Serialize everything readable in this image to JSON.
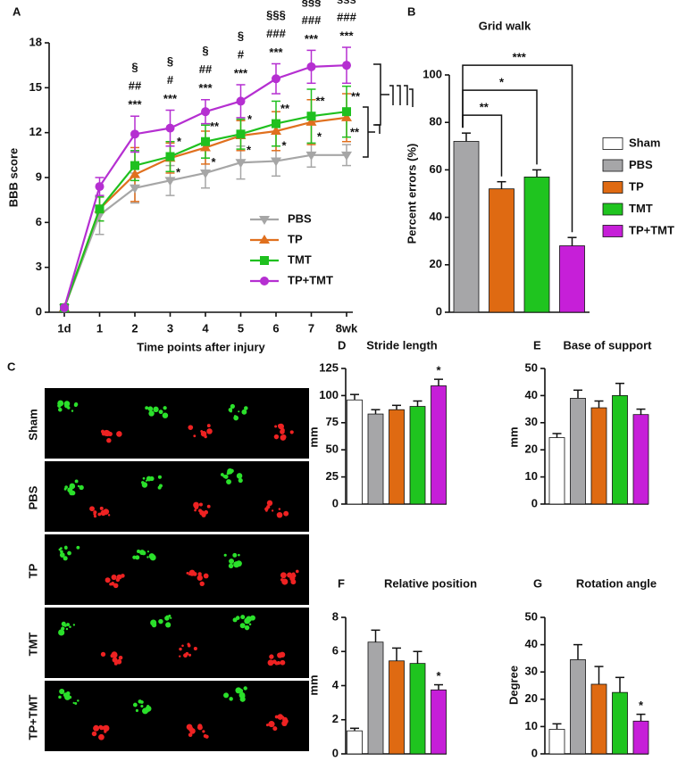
{
  "chart_data": [
    {
      "panel": "A",
      "type": "line",
      "ylabel": "BBB score",
      "xlabel": "Time points after injury",
      "categories": [
        "1d",
        "1",
        "2",
        "3",
        "4",
        "5",
        "6",
        "7",
        "8wk"
      ],
      "ylim": [
        0,
        18
      ],
      "yticks": [
        0,
        3,
        6,
        9,
        12,
        15,
        18
      ],
      "legend_position": "lower right",
      "series": [
        {
          "name": "PBS",
          "color": "#a6a6a6",
          "marker": "triangle-down",
          "values": [
            0.3,
            6.5,
            8.3,
            8.8,
            9.3,
            10.0,
            10.1,
            10.5,
            10.5
          ],
          "errors": [
            0.1,
            1.3,
            1.0,
            1.0,
            1.0,
            1.1,
            1.0,
            0.8,
            0.7
          ]
        },
        {
          "name": "TP",
          "color": "#e0701e",
          "marker": "triangle-up",
          "values": [
            0.3,
            6.9,
            9.2,
            10.3,
            11.0,
            11.8,
            12.1,
            12.7,
            13.0
          ],
          "errors": [
            0.1,
            0.8,
            1.8,
            1.0,
            1.1,
            1.0,
            1.3,
            1.5,
            1.6
          ],
          "annotations": [
            null,
            null,
            null,
            [
              "*"
            ],
            [
              "*"
            ],
            [
              "*"
            ],
            [
              "*"
            ],
            [
              "*"
            ],
            [
              "**"
            ]
          ]
        },
        {
          "name": "TMT",
          "color": "#1fc01f",
          "marker": "square",
          "values": [
            0.3,
            6.9,
            9.8,
            10.4,
            11.4,
            11.9,
            12.6,
            13.1,
            13.4
          ],
          "errors": [
            0.1,
            0.8,
            1.0,
            1.0,
            1.1,
            1.0,
            1.5,
            1.8,
            1.7
          ],
          "annotations": [
            null,
            null,
            null,
            [
              "*"
            ],
            [
              "**"
            ],
            [
              "*"
            ],
            [
              "**"
            ],
            [
              "**"
            ],
            [
              "**"
            ]
          ]
        },
        {
          "name": "TP+TMT",
          "color": "#b52fd1",
          "marker": "circle",
          "values": [
            0.3,
            8.4,
            11.9,
            12.3,
            13.4,
            14.1,
            15.6,
            16.4,
            16.5
          ],
          "errors": [
            0.1,
            0.6,
            1.2,
            1.2,
            0.8,
            1.1,
            1.0,
            1.1,
            1.2
          ],
          "annotations": [
            null,
            null,
            [
              "§",
              "##",
              "***"
            ],
            [
              "§",
              "#",
              "***"
            ],
            [
              "§",
              "##",
              "***"
            ],
            [
              "§",
              "#",
              "***"
            ],
            [
              "§§§",
              "###",
              "***"
            ],
            [
              "§§§",
              "###",
              "***"
            ],
            [
              "§§§",
              "###",
              "***"
            ]
          ]
        }
      ]
    },
    {
      "panel": "B",
      "type": "bar",
      "title": "Grid walk",
      "ylabel": "Percent errors (%)",
      "categories": [
        "Sham",
        "PBS",
        "TP",
        "TMT",
        "TP+TMT"
      ],
      "colors": [
        "#ffffff",
        "#a6a6a8",
        "#df6a12",
        "#1fc41f",
        "#c61fd8"
      ],
      "values": [
        null,
        72,
        52,
        57,
        28
      ],
      "errors": [
        null,
        3.5,
        3,
        3,
        3.5
      ],
      "ylim": [
        0,
        100
      ],
      "yticks": [
        0,
        20,
        40,
        60,
        80,
        100
      ],
      "legend": true,
      "comparisons": [
        {
          "label": "**",
          "between": [
            "PBS",
            "TP"
          ]
        },
        {
          "label": "*",
          "between": [
            "PBS",
            "TMT"
          ]
        },
        {
          "label": "***",
          "between": [
            "PBS",
            "TP+TMT"
          ]
        }
      ]
    },
    {
      "panel": "C",
      "type": "image",
      "rows": [
        "Sham",
        "PBS",
        "TP",
        "TMT",
        "TP+TMT"
      ]
    },
    {
      "panel": "D",
      "type": "bar",
      "title": "Stride length",
      "ylabel": "mm",
      "colors": [
        "#ffffff",
        "#a6a6a8",
        "#df6a12",
        "#1fc41f",
        "#c61fd8"
      ],
      "values": [
        96,
        83,
        87,
        90,
        109
      ],
      "errors": [
        5,
        4,
        4,
        5,
        6
      ],
      "ylim": [
        0,
        125
      ],
      "yticks": [
        0,
        25,
        50,
        75,
        100,
        125
      ],
      "annotations": [
        null,
        null,
        null,
        null,
        "*"
      ]
    },
    {
      "panel": "E",
      "type": "bar",
      "title": "Base of support",
      "ylabel": "mm",
      "colors": [
        "#ffffff",
        "#a6a6a8",
        "#df6a12",
        "#1fc41f",
        "#c61fd8"
      ],
      "values": [
        24.5,
        39,
        35.5,
        40,
        33
      ],
      "errors": [
        1.5,
        3,
        2.5,
        4.5,
        2
      ],
      "ylim": [
        0,
        50
      ],
      "yticks": [
        0,
        10,
        20,
        30,
        40,
        50
      ]
    },
    {
      "panel": "F",
      "type": "bar",
      "title": "Relative position",
      "ylabel": "mm",
      "colors": [
        "#ffffff",
        "#a6a6a8",
        "#df6a12",
        "#1fc41f",
        "#c61fd8"
      ],
      "values": [
        1.35,
        6.55,
        5.45,
        5.3,
        3.75
      ],
      "errors": [
        0.15,
        0.7,
        0.75,
        0.7,
        0.3
      ],
      "ylim": [
        0,
        8
      ],
      "yticks": [
        0,
        2,
        4,
        6,
        8
      ],
      "annotations": [
        null,
        null,
        null,
        null,
        "*"
      ]
    },
    {
      "panel": "G",
      "type": "bar",
      "title": "Rotation angle",
      "ylabel": "Degree",
      "colors": [
        "#ffffff",
        "#a6a6a8",
        "#df6a12",
        "#1fc41f",
        "#c61fd8"
      ],
      "values": [
        9,
        34.5,
        25.5,
        22.5,
        12
      ],
      "errors": [
        2,
        5.5,
        6.5,
        5.5,
        2.5
      ],
      "ylim": [
        0,
        50
      ],
      "yticks": [
        0,
        10,
        20,
        30,
        40,
        50
      ],
      "annotations": [
        null,
        null,
        null,
        null,
        "*"
      ]
    }
  ]
}
